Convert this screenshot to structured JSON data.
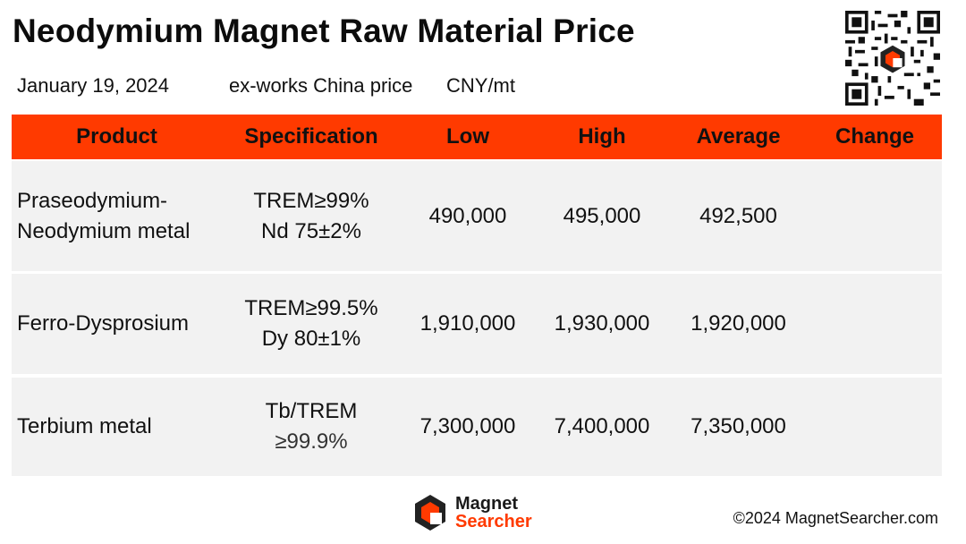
{
  "header": {
    "title": "Neodymium Magnet Raw Material Price",
    "date": "January 19, 2024",
    "price_basis": "ex-works China price",
    "unit": "CNY/mt"
  },
  "table": {
    "columns": [
      "Product",
      "Specification",
      "Low",
      "High",
      "Average",
      "Change"
    ],
    "rows": [
      {
        "product": [
          "Praseodymium-",
          "Neodymium metal"
        ],
        "spec": [
          "TREM≥99%",
          "Nd 75±2%"
        ],
        "low": "490,000",
        "high": "495,000",
        "average": "492,500",
        "change": ""
      },
      {
        "product": [
          "Ferro-Dysprosium"
        ],
        "spec": [
          "TREM≥99.5%",
          "Dy 80±1%"
        ],
        "low": "1,910,000",
        "high": "1,930,000",
        "average": "1,920,000",
        "change": ""
      },
      {
        "product": [
          "Terbium metal"
        ],
        "spec": [
          "Tb/TREM",
          "≥99.9%"
        ],
        "low": "7,300,000",
        "high": "7,400,000",
        "average": "7,350,000",
        "change": ""
      }
    ]
  },
  "footer": {
    "logo_line1": "Magnet",
    "logo_line2": "Searcher",
    "copyright": "©2024 MagnetSearcher.com"
  },
  "colors": {
    "accent": "#ff3a00",
    "row_bg": "#f2f2f2",
    "text": "#111111"
  },
  "icons": {
    "qr": "qr-code-icon",
    "logo": "magnet-searcher-logo-icon"
  }
}
